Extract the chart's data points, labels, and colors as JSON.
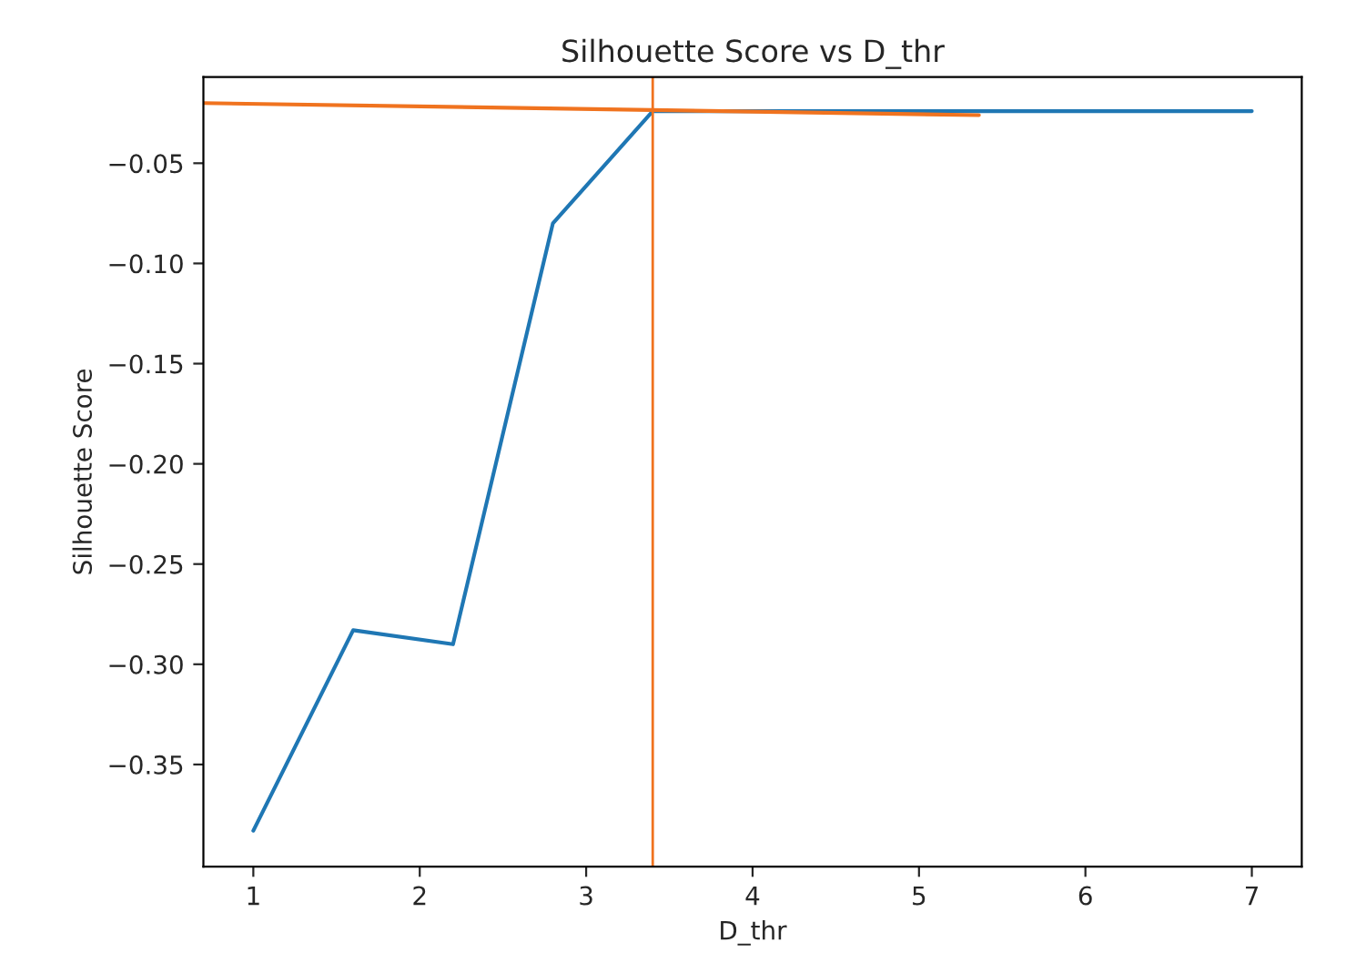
{
  "chart_data": {
    "type": "line",
    "title": "Silhouette Score vs D_thr",
    "xlabel": "D_thr",
    "ylabel": "Silhouette Score",
    "x": [
      1,
      1.6,
      2.2,
      2.8,
      3.4,
      4,
      4.6,
      5.2,
      5.8,
      6.4,
      7
    ],
    "series": [
      {
        "color": "#1f77b4",
        "values": [
          -0.383,
          -0.283,
          -0.29,
          -0.08,
          -0.024,
          -0.024,
          -0.024,
          -0.024,
          -0.024,
          -0.024,
          -0.024
        ]
      },
      {
        "color": "#f0731f",
        "x": [
          0.7,
          5.36
        ],
        "values": [
          -0.02,
          -0.026
        ]
      }
    ],
    "ref_lines": [
      {
        "axis": "x",
        "value": 3.4,
        "color": "#f0731f"
      }
    ],
    "xlim": [
      0.7,
      7.3
    ],
    "ylim": [
      -0.401,
      -0.007
    ],
    "xticks": [
      1,
      2,
      3,
      4,
      5,
      6,
      7
    ],
    "yticks": [
      {
        "value": -0.05,
        "label": "−0.05"
      },
      {
        "value": -0.1,
        "label": "−0.10"
      },
      {
        "value": -0.15,
        "label": "−0.15"
      },
      {
        "value": -0.2,
        "label": "−0.20"
      },
      {
        "value": -0.25,
        "label": "−0.25"
      },
      {
        "value": -0.3,
        "label": "−0.30"
      },
      {
        "value": -0.35,
        "label": "−0.35"
      }
    ],
    "grid": false
  }
}
